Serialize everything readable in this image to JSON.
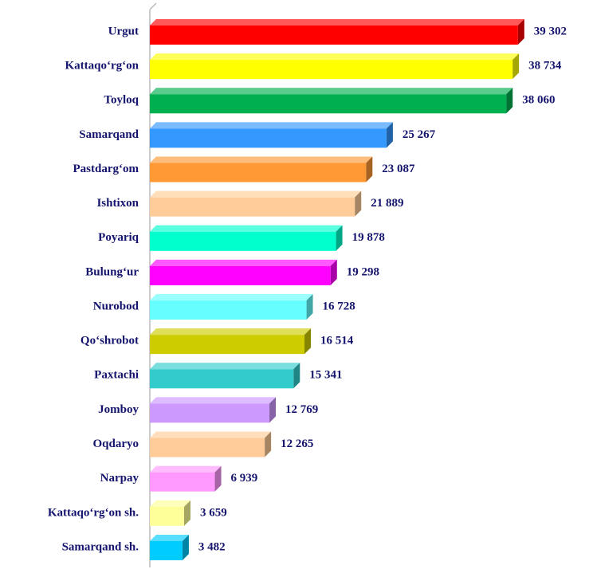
{
  "chart_data": {
    "type": "bar",
    "orientation": "horizontal",
    "categories": [
      "Urgut",
      "Kattaqo‘rg‘on",
      "Toyloq",
      "Samarqand",
      "Pastdarg‘om",
      "Ishtixon",
      "Poyariq",
      "Bulung‘ur",
      "Nurobod",
      "Qo‘shrobot",
      "Paxtachi",
      "Jomboy",
      "Oqdaryo",
      "Narpay",
      "Kattaqo‘rg‘on sh.",
      "Samarqand sh."
    ],
    "values": [
      39302,
      38734,
      38060,
      25267,
      23087,
      21889,
      19878,
      19298,
      16728,
      16514,
      15341,
      12769,
      12265,
      6939,
      3659,
      3482
    ],
    "value_labels": [
      "39 302",
      "38 734",
      "38 060",
      "25 267",
      "23 087",
      "21 889",
      "19 878",
      "19 298",
      "16 728",
      "16 514",
      "15 341",
      "12 769",
      "12 265",
      "6 939",
      "3 659",
      "3 482"
    ],
    "colors": [
      "#ff0000",
      "#ffff00",
      "#00b050",
      "#3399ff",
      "#ff9933",
      "#ffcc99",
      "#00ffcc",
      "#ff00ff",
      "#66ffff",
      "#cccc00",
      "#33cccc",
      "#cc99ff",
      "#ffcc99",
      "#ff99ff",
      "#ffff99",
      "#00ccff"
    ],
    "xlim": [
      0,
      40000
    ]
  }
}
